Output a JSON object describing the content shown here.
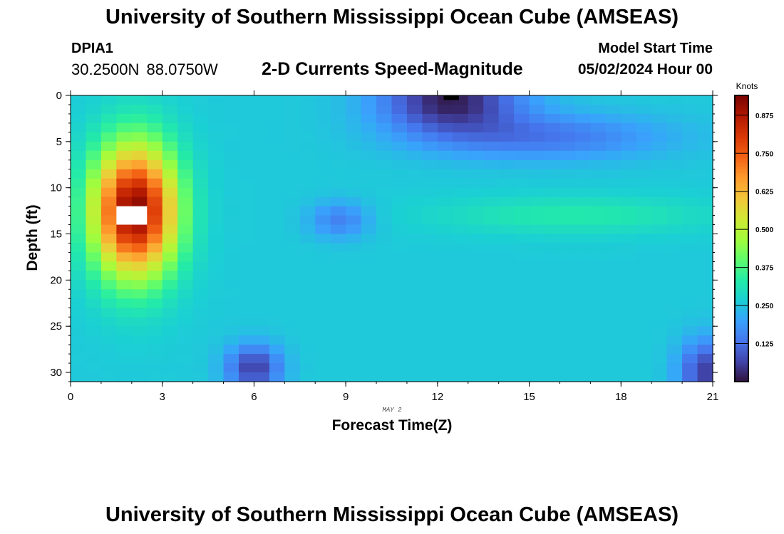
{
  "header": {
    "title": "University of Southern Mississippi Ocean Cube (AMSEAS)",
    "station_id": "DPIA1",
    "station_coords": "30.2500N  88.0750W",
    "plot_title": "2-D Currents Speed-Magnitude",
    "model_start_label": "Model Start Time",
    "model_start_value": "05/02/2024 Hour 00"
  },
  "footer": {
    "title": "University of Southern Mississippi Ocean Cube (AMSEAS)"
  },
  "chart_data": {
    "type": "heatmap",
    "title": "2-D Currents Speed-Magnitude",
    "xlabel": "Forecast Time(Z)",
    "ylabel": "Depth (ft)",
    "date_label": "MAY 2",
    "xlim": [
      0,
      21
    ],
    "ylim": [
      31,
      0
    ],
    "xticks": [
      0,
      3,
      6,
      9,
      12,
      15,
      18,
      21
    ],
    "yticks": [
      0,
      5,
      10,
      15,
      20,
      25,
      30
    ],
    "grid": false,
    "colorbar": {
      "label": "Knots",
      "range": [
        0.0,
        0.94
      ],
      "ticks": [
        "0.875",
        "0.750",
        "0.625",
        "0.500",
        "0.375",
        "0.250",
        "0.125"
      ],
      "tick_values": [
        0.875,
        0.75,
        0.625,
        0.5,
        0.375,
        0.25,
        0.125
      ],
      "colors": [
        "#30123b",
        "#4145ab",
        "#4675ed",
        "#39a2fc",
        "#1bcfd4",
        "#24eca6",
        "#61fc6c",
        "#a4fc3b",
        "#d1e834",
        "#f3c63a",
        "#fe9b2d",
        "#f36315",
        "#d93806",
        "#b11901",
        "#7a0402"
      ]
    },
    "features": [
      {
        "name": "surface max",
        "x": 2.1,
        "y": 12.5,
        "value": 0.93,
        "sx": 1.35,
        "sy": 7.0
      },
      {
        "name": "morning surface low",
        "x": 12.4,
        "y": 0.5,
        "value": 0.02,
        "sx": 2.3,
        "sy": 3.5
      },
      {
        "name": "surface band",
        "x": 15.5,
        "y": 4.5,
        "value": 0.14,
        "sx": 4.0,
        "sy": 2.5
      },
      {
        "name": "deep low",
        "x": 6.0,
        "y": 29.5,
        "value": 0.06,
        "sx": 0.9,
        "sy": 2.5
      },
      {
        "name": "deep low late",
        "x": 20.8,
        "y": 30.0,
        "value": 0.06,
        "sx": 0.9,
        "sy": 3.5
      },
      {
        "name": "mid-depth band",
        "x": 16.5,
        "y": 13.0,
        "value": 0.33,
        "sx": 4.5,
        "sy": 2.0
      },
      {
        "name": "mid low",
        "x": 8.8,
        "y": 13.5,
        "value": 0.15,
        "sx": 1.0,
        "sy": 2.0
      }
    ],
    "values_note": "",
    "missing_cells": [
      {
        "x": 2.0,
        "y": 13.0
      }
    ]
  }
}
